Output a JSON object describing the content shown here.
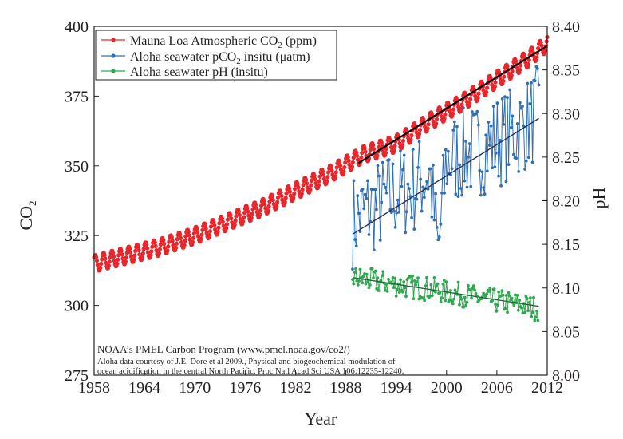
{
  "chart_data": {
    "type": "line",
    "title": "",
    "xlabel": "Year",
    "ylabel_left": "CO",
    "ylabel_left_sub": "2",
    "ylabel_right": "pH",
    "xlim": [
      1958,
      2012
    ],
    "ylim_left": [
      275,
      400
    ],
    "ylim_right": [
      8.0,
      8.4
    ],
    "xticks": [
      "1958",
      "1964",
      "1970",
      "1976",
      "1982",
      "1988",
      "1994",
      "2000",
      "2006",
      "2012"
    ],
    "yticks_left": [
      "275",
      "300",
      "325",
      "350",
      "375",
      "400"
    ],
    "yticks_right": [
      "8.00",
      "8.05",
      "8.10",
      "8.15",
      "8.20",
      "8.25",
      "8.30",
      "8.35",
      "8.40"
    ],
    "legend_position": "top-left",
    "legend": [
      {
        "label_pre": "Mauna Loa Atmospheric CO",
        "sub": "2",
        "label_post": " (ppm)",
        "color": "#e8262b"
      },
      {
        "label_pre": "Aloha seawater pCO",
        "sub": "2",
        "label_post": " insitu (μatm)",
        "color": "#2f6fb6"
      },
      {
        "label_pre": "Aloha seawater pH (insitu)",
        "sub": "",
        "label_post": "",
        "color": "#2fa84f"
      }
    ],
    "series": [
      {
        "name": "Mauna Loa Atmospheric CO2 (ppm)",
        "axis": "left",
        "color": "#e8262b",
        "x": [
          1958,
          1962,
          1966,
          1970,
          1974,
          1978,
          1982,
          1986,
          1990,
          1994,
          1998,
          2002,
          2006,
          2010,
          2012
        ],
        "values": [
          315,
          318,
          321,
          325,
          330,
          335,
          341,
          347,
          354,
          358,
          366,
          373,
          381,
          389,
          394
        ],
        "seasonal_amplitude": 3
      },
      {
        "name": "Aloha seawater pCO2 insitu (μatm)",
        "axis": "left",
        "color": "#2f6fb6",
        "x": [
          1988.8,
          1990,
          1992,
          1994,
          1996,
          1998,
          1999,
          2000,
          2002,
          2004,
          2006,
          2008,
          2010,
          2011
        ],
        "values": [
          330,
          333,
          336,
          340,
          342,
          348,
          319,
          352,
          354,
          356,
          359,
          362,
          366,
          370
        ],
        "variability": 17
      },
      {
        "name": "Aloha seawater pH (insitu)",
        "axis": "right",
        "color": "#2fa84f",
        "x": [
          1988.8,
          1990,
          1992,
          1994,
          1996,
          1998,
          2000,
          2002,
          2004,
          2006,
          2008,
          2010,
          2011
        ],
        "values": [
          8.112,
          8.11,
          8.107,
          8.104,
          8.101,
          8.099,
          8.095,
          8.092,
          8.088,
          8.085,
          8.082,
          8.078,
          8.076
        ],
        "variability": 0.014
      }
    ],
    "trend_lines": [
      {
        "name": "Mauna Loa trend",
        "axis": "left",
        "x": [
          1989.5,
          2012
        ],
        "values": [
          351,
          393
        ],
        "color": "#000000"
      },
      {
        "name": "Aloha pCO2 trend",
        "axis": "left",
        "x": [
          1988.8,
          2011
        ],
        "values": [
          325.5,
          367
        ],
        "color": "#1f2f5a"
      },
      {
        "name": "Aloha pH trend",
        "axis": "right",
        "x": [
          1988.8,
          2011
        ],
        "values": [
          8.112,
          8.079
        ],
        "color": "#1e6a36"
      }
    ],
    "annotation": {
      "line1": "NOAA’s PMEL Carbon Program (www.pmel.noaa.gov/co2/)",
      "line2": "Aloha data courtesy of J.E. Dore et al 2009., Physical and biogeochemical modulation of",
      "line3": "ocean acidification in the central North Pacific. Proc Natl Acad Sci USA 106:12235-12240."
    }
  }
}
